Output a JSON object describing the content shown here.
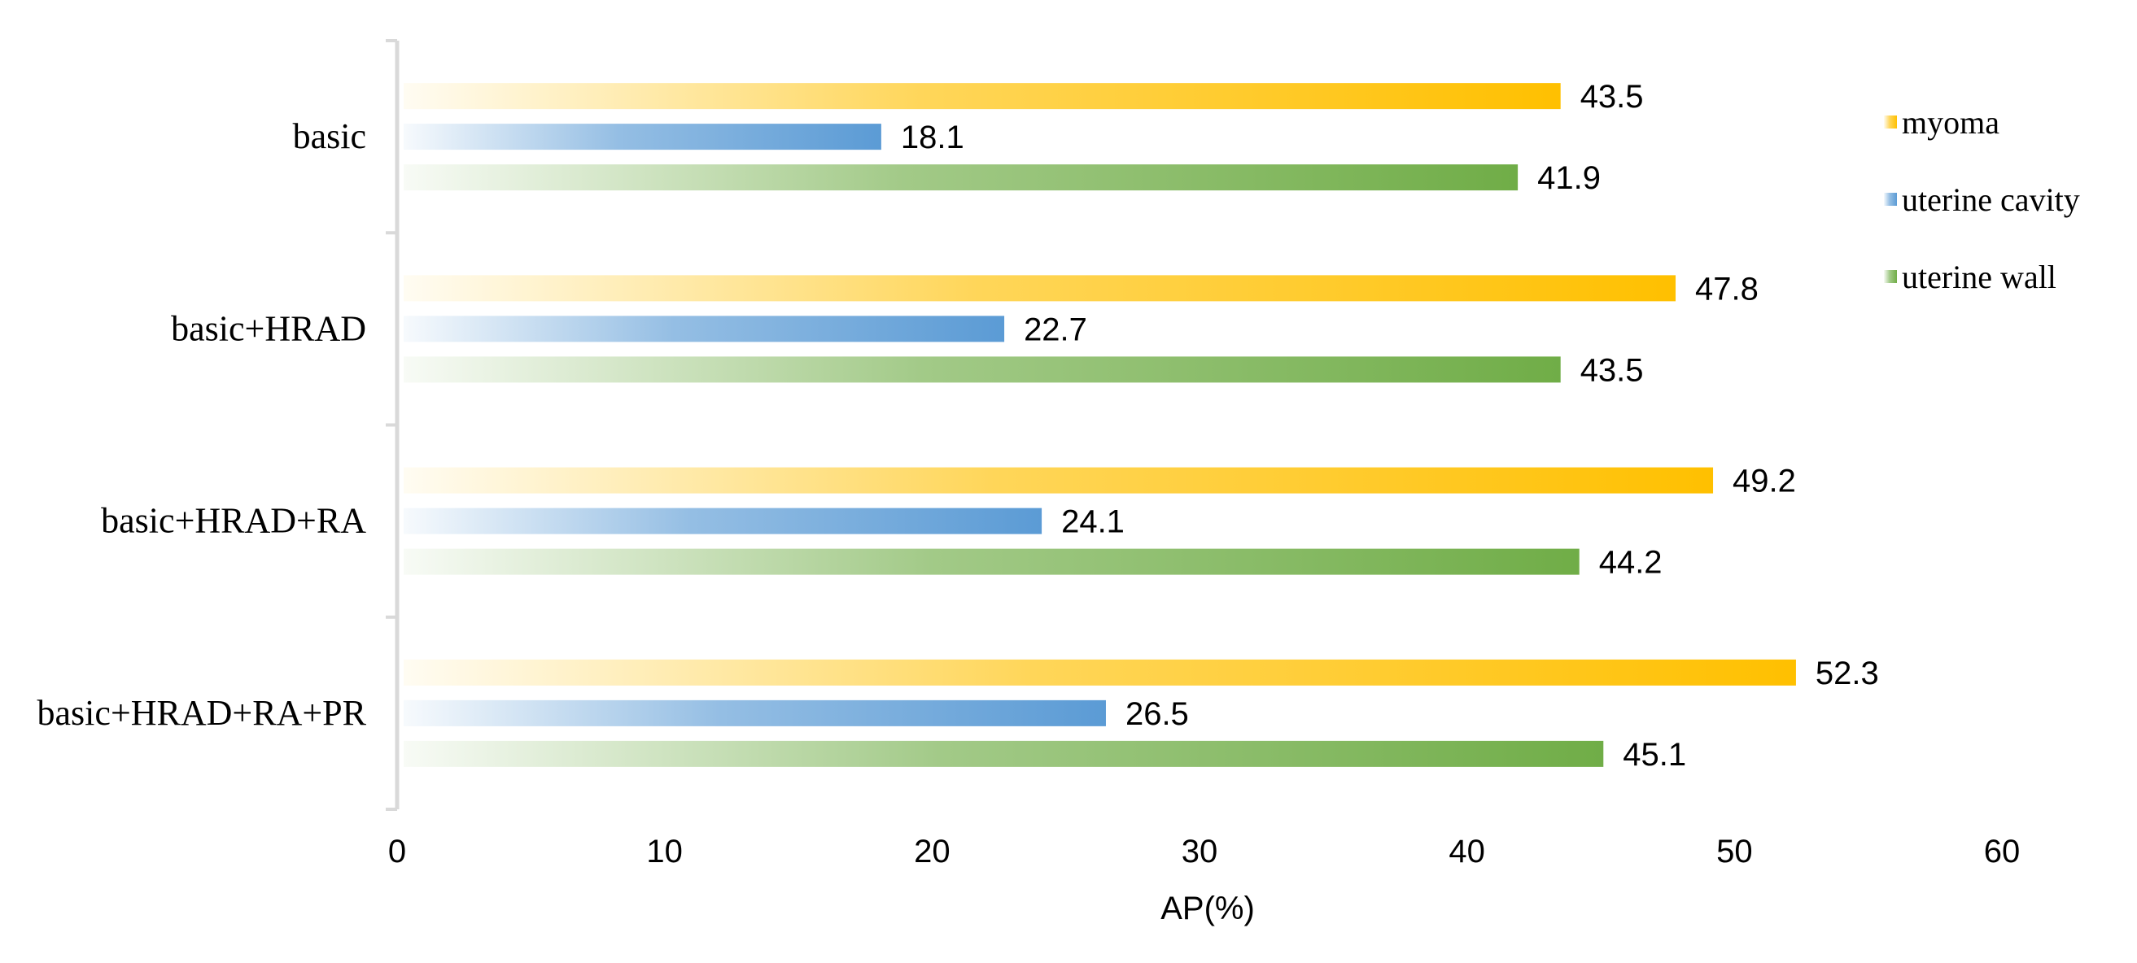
{
  "chart_data": {
    "type": "bar",
    "orientation": "horizontal",
    "title": "",
    "xlabel": "AP(%)",
    "ylabel": "",
    "xlim": [
      0,
      60
    ],
    "xticks": [
      0,
      10,
      20,
      30,
      40,
      50,
      60
    ],
    "grid": false,
    "legend_position": "right",
    "categories": [
      "basic",
      "basic+HRAD",
      "basic+HRAD+RA",
      "basic+HRAD+RA+PR"
    ],
    "series": [
      {
        "name": "myoma",
        "color": "#FFC000",
        "values": [
          43.5,
          47.8,
          49.2,
          52.3
        ]
      },
      {
        "name": "uterine cavity",
        "color": "#5B9BD5",
        "values": [
          18.1,
          22.7,
          24.1,
          26.5
        ]
      },
      {
        "name": "uterine wall",
        "color": "#70AD47",
        "values": [
          41.9,
          43.5,
          44.2,
          45.1
        ]
      }
    ]
  }
}
